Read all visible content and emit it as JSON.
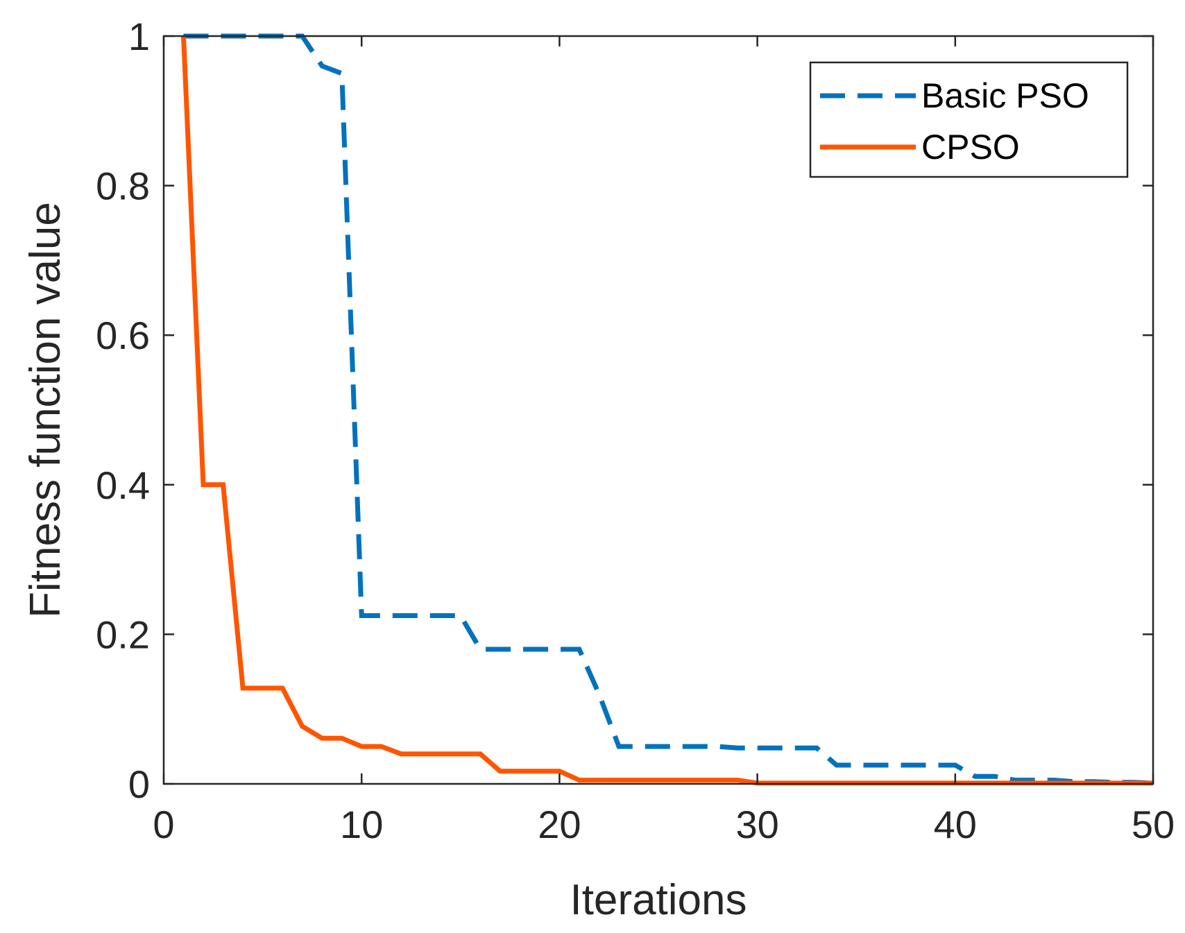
{
  "chart_data": {
    "type": "line",
    "title": "",
    "xlabel": "Iterations",
    "ylabel": "Fitness function value",
    "xlim": [
      0,
      50
    ],
    "ylim": [
      0,
      1
    ],
    "xticks": [
      0,
      10,
      20,
      30,
      40,
      50
    ],
    "yticks": [
      0,
      0.2,
      0.4,
      0.6,
      0.8,
      1
    ],
    "xtick_labels": [
      "0",
      "10",
      "20",
      "30",
      "40",
      "50"
    ],
    "ytick_labels": [
      "0",
      "0.2",
      "0.4",
      "0.6",
      "0.8",
      "1"
    ],
    "grid": false,
    "legend_position": "top-right",
    "series": [
      {
        "name": "Basic PSO",
        "color": "#0072BD",
        "style": "dashed",
        "x": [
          1,
          2,
          3,
          4,
          5,
          6,
          7,
          8,
          9,
          10,
          11,
          12,
          13,
          14,
          15,
          16,
          17,
          18,
          19,
          20,
          21,
          22,
          23,
          24,
          25,
          26,
          27,
          28,
          29,
          30,
          31,
          32,
          33,
          34,
          35,
          36,
          37,
          38,
          39,
          40,
          41,
          42,
          43,
          44,
          45,
          46,
          47,
          48,
          49,
          50
        ],
        "y": [
          1,
          1,
          1,
          1,
          1,
          1,
          1,
          0.96,
          0.95,
          0.225,
          0.225,
          0.225,
          0.225,
          0.225,
          0.225,
          0.18,
          0.18,
          0.18,
          0.18,
          0.18,
          0.18,
          0.12,
          0.05,
          0.05,
          0.05,
          0.05,
          0.05,
          0.05,
          0.048,
          0.048,
          0.048,
          0.048,
          0.048,
          0.025,
          0.025,
          0.025,
          0.025,
          0.025,
          0.025,
          0.025,
          0.01,
          0.01,
          0.005,
          0.005,
          0.005,
          0.003,
          0.003,
          0.002,
          0.002,
          0.001
        ]
      },
      {
        "name": "CPSO",
        "color": "#FF5500",
        "style": "solid",
        "x": [
          1,
          2,
          3,
          4,
          5,
          6,
          7,
          8,
          9,
          10,
          11,
          12,
          13,
          14,
          15,
          16,
          17,
          18,
          19,
          20,
          21,
          22,
          23,
          24,
          25,
          26,
          27,
          28,
          29,
          30,
          31,
          32,
          33,
          34,
          35,
          36,
          37,
          38,
          39,
          40,
          41,
          42,
          43,
          44,
          45,
          46,
          47,
          48,
          49,
          50
        ],
        "y": [
          1,
          0.4,
          0.4,
          0.128,
          0.128,
          0.128,
          0.077,
          0.061,
          0.061,
          0.05,
          0.05,
          0.04,
          0.04,
          0.04,
          0.04,
          0.04,
          0.017,
          0.017,
          0.017,
          0.017,
          0.005,
          0.005,
          0.005,
          0.005,
          0.005,
          0.005,
          0.005,
          0.005,
          0.005,
          0.001,
          0.001,
          0.001,
          0.001,
          0.001,
          0.001,
          0.001,
          0.001,
          0.001,
          0.001,
          0.001,
          0.001,
          0.001,
          0.001,
          0.001,
          0.001,
          0.001,
          0.001,
          0.001,
          0.001,
          0.001
        ]
      }
    ]
  }
}
